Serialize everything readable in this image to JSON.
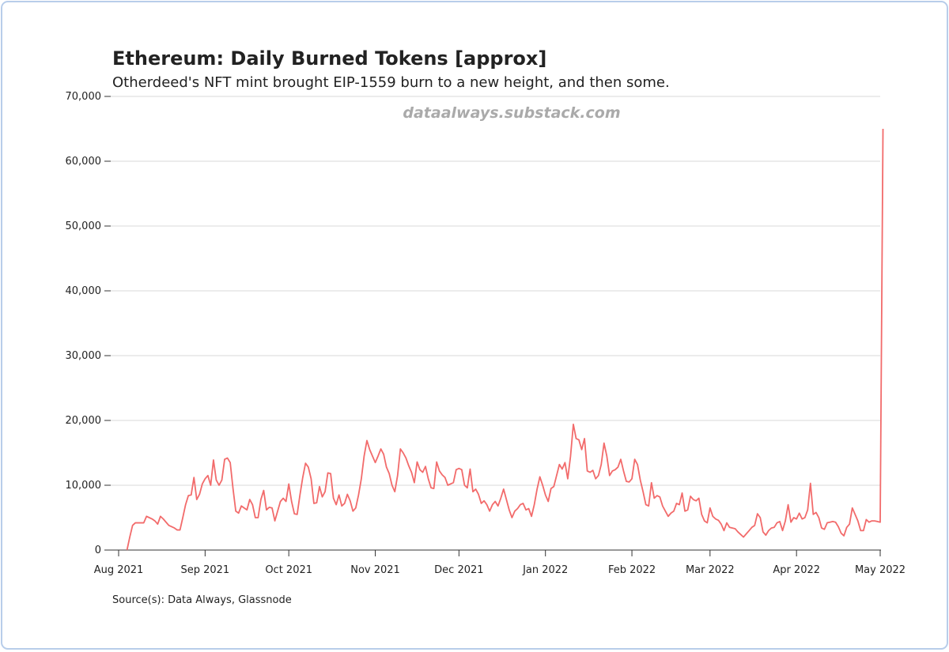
{
  "chart_data": {
    "type": "line",
    "title": "Ethereum: Daily Burned Tokens [approx]",
    "subtitle": "Otherdeed's NFT mint brought EIP-1559 burn to a new height, and then some.",
    "watermark": "dataalways.substack.com",
    "source": "Source(s): Data Always, Glassnode",
    "color": "#f26b6b",
    "grid": true,
    "xlim": [
      0,
      273
    ],
    "xticks": [
      {
        "value": 0,
        "label": "Aug 2021"
      },
      {
        "value": 31,
        "label": "Sep 2021"
      },
      {
        "value": 61,
        "label": "Oct 2021"
      },
      {
        "value": 92,
        "label": "Nov 2021"
      },
      {
        "value": 122,
        "label": "Dec 2021"
      },
      {
        "value": 153,
        "label": "Jan 2022"
      },
      {
        "value": 184,
        "label": "Feb 2022"
      },
      {
        "value": 212,
        "label": "Mar 2022"
      },
      {
        "value": 243,
        "label": "Apr 2022"
      },
      {
        "value": 273,
        "label": "May 2022"
      }
    ],
    "ylim": [
      0,
      70000
    ],
    "yticks": [
      0,
      {
        "value": 10000,
        "label": "10,000"
      },
      {
        "value": 20000,
        "label": "20,000"
      },
      {
        "value": 30000,
        "label": "30,000"
      },
      {
        "value": 40000,
        "label": "40,000"
      },
      {
        "value": 50000,
        "label": "50,000"
      },
      {
        "value": 60000,
        "label": "60,000"
      },
      {
        "value": 70000,
        "label": "70,000"
      }
    ],
    "values": [
      null,
      null,
      null,
      0,
      2000,
      3800,
      4200,
      4200,
      4200,
      4200,
      5200,
      5000,
      4800,
      4500,
      4000,
      5200,
      4800,
      4300,
      3800,
      3600,
      3400,
      3100,
      3100,
      5000,
      7000,
      8400,
      8500,
      11200,
      7800,
      8600,
      10200,
      11000,
      11500,
      10000,
      13900,
      10800,
      10000,
      10800,
      14000,
      14200,
      13500,
      9500,
      6000,
      5700,
      6800,
      6500,
      6200,
      7800,
      7000,
      5000,
      5000,
      7800,
      9200,
      6200,
      6600,
      6500,
      4500,
      6000,
      7500,
      8000,
      7500,
      10200,
      7500,
      5600,
      5500,
      8500,
      11200,
      13400,
      12800,
      11000,
      7200,
      7300,
      9800,
      8200,
      9000,
      11900,
      11800,
      8000,
      7000,
      8500,
      6800,
      7200,
      8600,
      7600,
      6000,
      6500,
      8500,
      11000,
      14500,
      16900,
      15500,
      14500,
      13500,
      14500,
      15600,
      14800,
      12800,
      11800,
      10000,
      9000,
      11500,
      15600,
      15000,
      14200,
      13000,
      12000,
      10400,
      13600,
      12400,
      12000,
      12900,
      11000,
      9600,
      9500,
      13600,
      12200,
      11600,
      11200,
      10000,
      10200,
      10400,
      12400,
      12600,
      12400,
      10000,
      9600,
      12500,
      9000,
      9400,
      8600,
      7200,
      7600,
      7000,
      6000,
      7000,
      7500,
      6800,
      8000,
      9400,
      7800,
      6200,
      5000,
      6000,
      6400,
      7000,
      7200,
      6200,
      6400,
      5200,
      7000,
      9400,
      11300,
      10000,
      8500,
      7500,
      9500,
      9800,
      11500,
      13200,
      12500,
      13500,
      11000,
      14500,
      19400,
      17200,
      17000,
      15500,
      17200,
      12200,
      12000,
      12300,
      11000,
      11500,
      13200,
      16500,
      14500,
      11500,
      12200,
      12400,
      12800,
      14000,
      12200,
      10600,
      10500,
      11000,
      14000,
      13200,
      10800,
      9000,
      7000,
      6800,
      10400,
      8000,
      8400,
      8200,
      6800,
      6000,
      5200,
      5700,
      6000,
      7200,
      7000,
      8800,
      6000,
      6200,
      8300,
      7800,
      7600,
      8000,
      5500,
      4500,
      4200,
      6500,
      5200,
      4800,
      4600,
      4000,
      3000,
      4200,
      3500,
      3400,
      3300,
      2800,
      2400,
      2000,
      2500,
      3000,
      3500,
      3800,
      5600,
      5000,
      2800,
      2300,
      3000,
      3400,
      3500,
      4200,
      4400,
      3000,
      4500,
      7000,
      4300,
      5000,
      4800,
      5700,
      4800,
      5000,
      6200,
      10300,
      5500,
      5800,
      5000,
      3400,
      3200,
      4200,
      4300,
      4400,
      4300,
      3600,
      2600,
      2200,
      3500,
      4000,
      6500,
      5500,
      4500,
      3000,
      3000,
      4700,
      4300,
      4500,
      4500,
      4400,
      4300,
      65000
    ]
  }
}
